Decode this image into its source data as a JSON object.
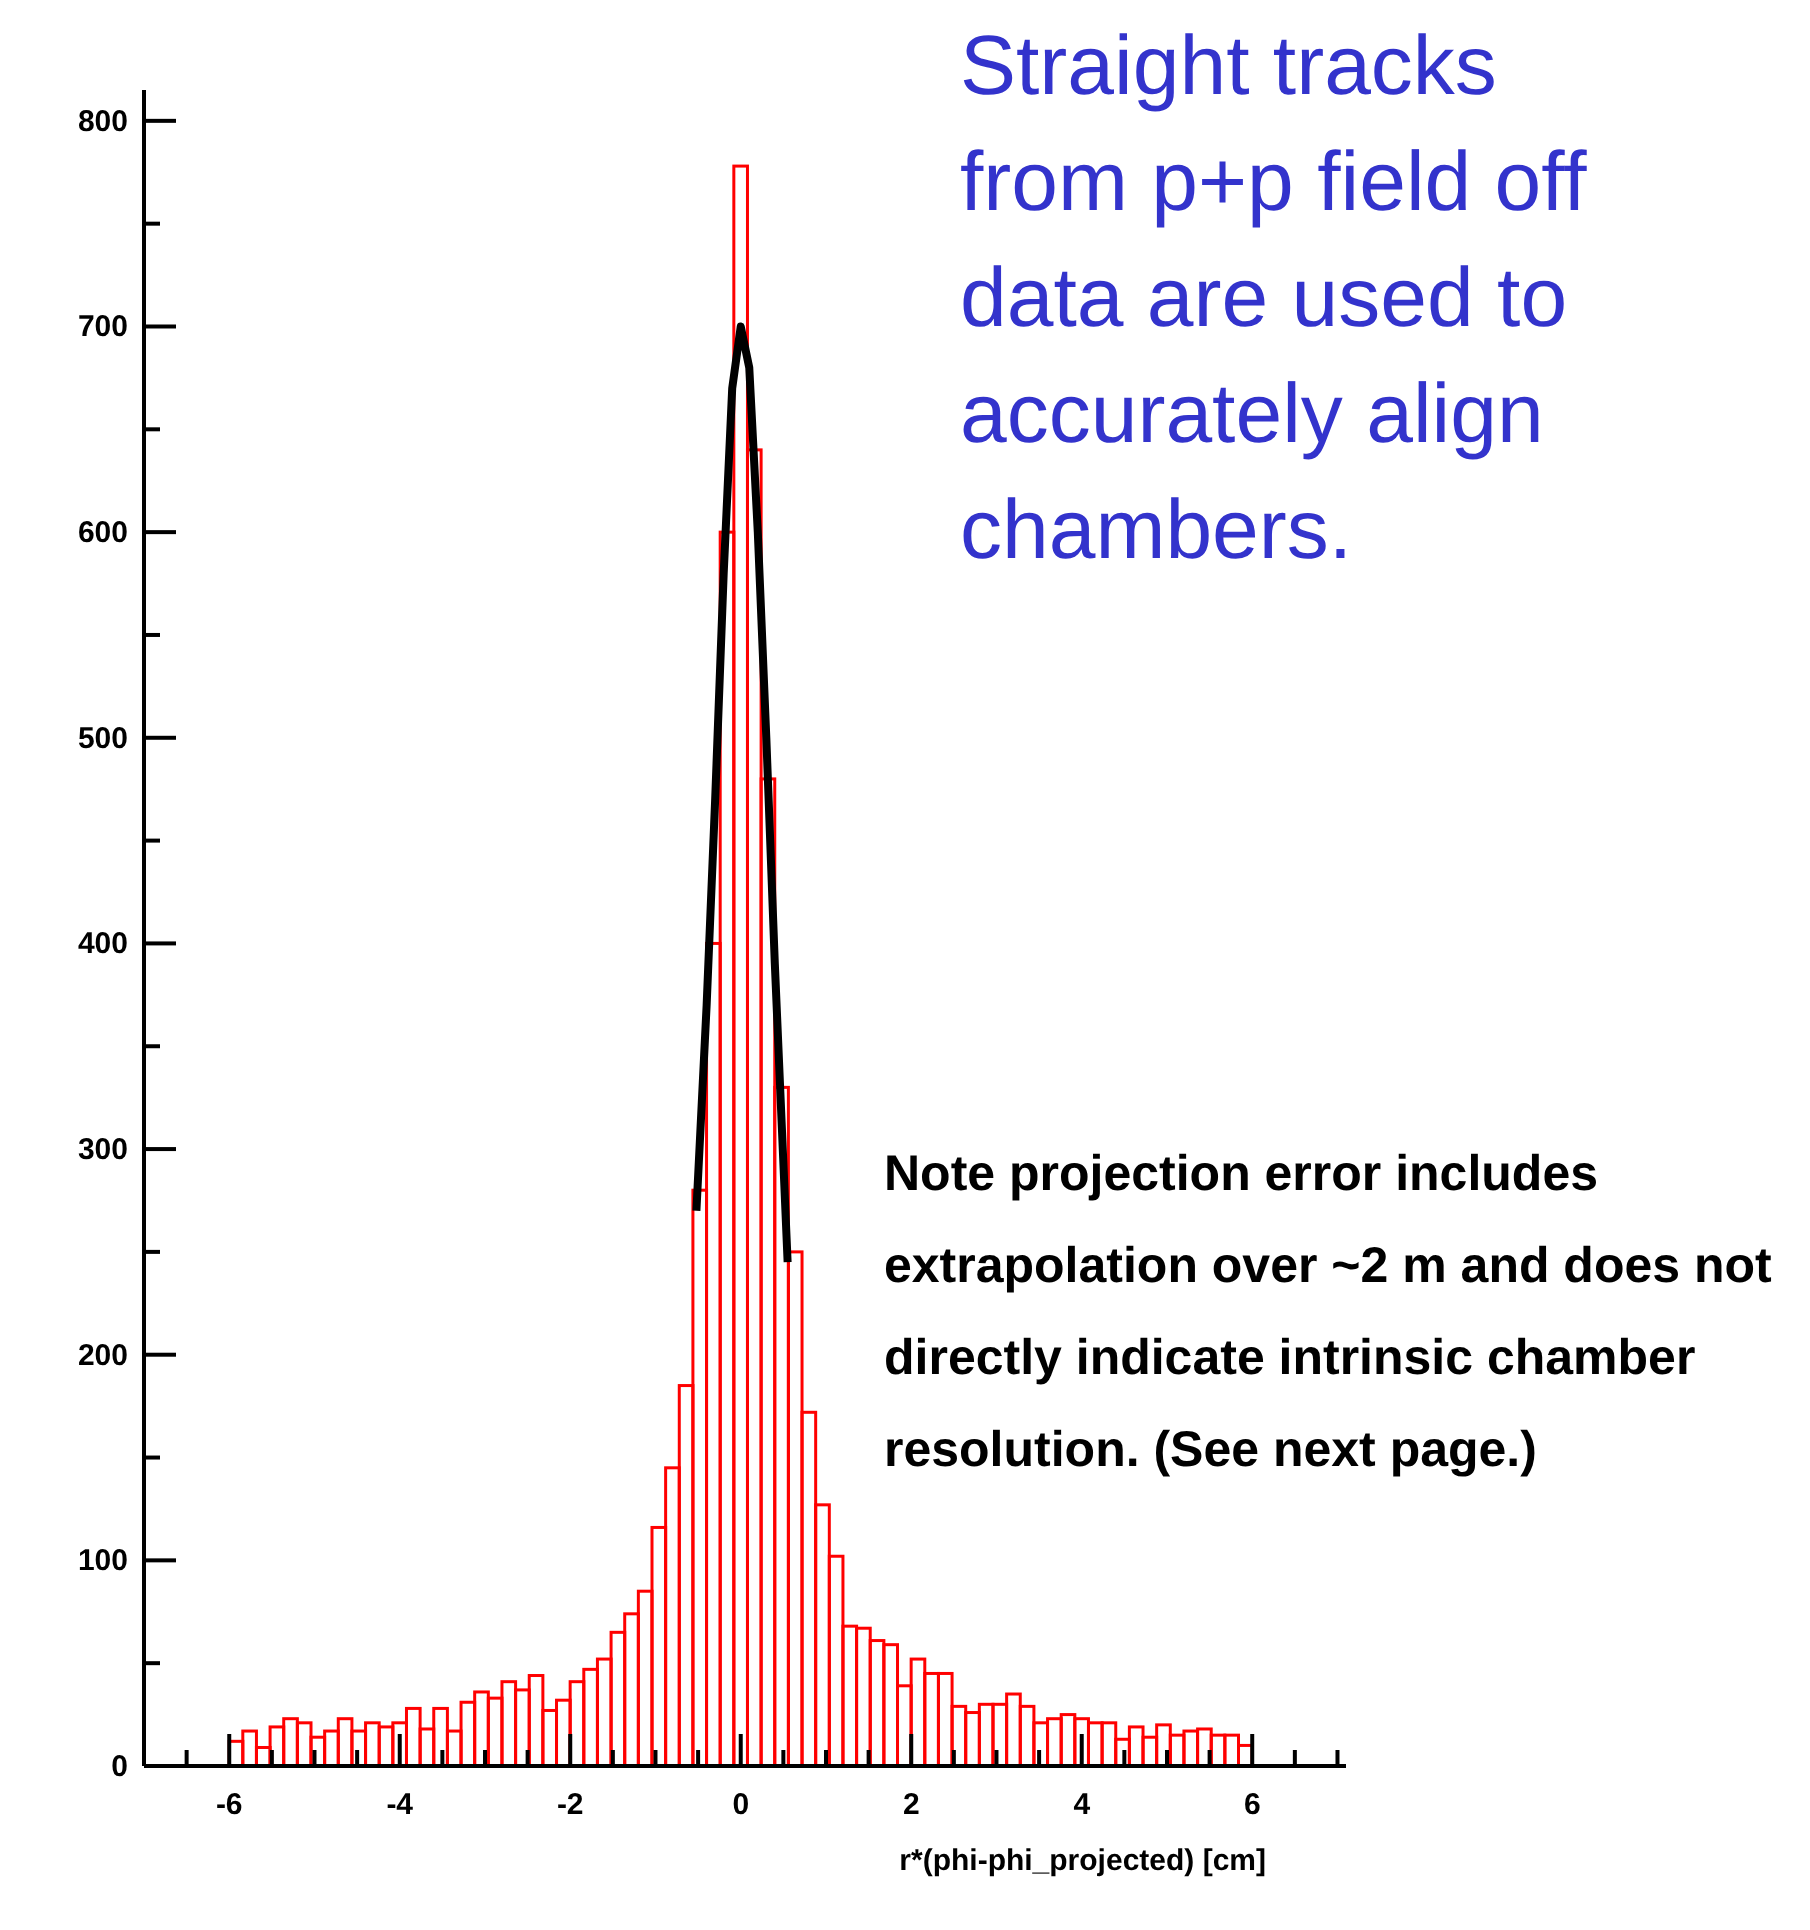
{
  "chart_data": {
    "type": "histogram",
    "xlabel": "r*(phi-phi_projected)  [cm]",
    "annotations": [
      "Straight tracks from p+p field off data are used to accurately align chambers.",
      "Note projection error includes extrapolation over ~2 m and does not directly indicate intrinsic chamber resolution. (See next page.)"
    ],
    "bins": [
      -6,
      -5.84,
      -5.68,
      -5.52,
      -5.36,
      -5.2,
      -5.04,
      -4.88,
      -4.72,
      -4.56,
      -4.4,
      -4.24,
      -4.08,
      -3.92,
      -3.76,
      -3.6,
      -3.44,
      -3.28,
      -3.12,
      -2.96,
      -2.8,
      -2.64,
      -2.48,
      -2.32,
      -2.16,
      -2,
      -1.84,
      -1.68,
      -1.52,
      -1.36,
      -1.2,
      -1.04,
      -0.88,
      -0.72,
      -0.56,
      -0.4,
      -0.24,
      -0.08,
      0.08,
      0.24,
      0.4,
      0.56,
      0.72,
      0.88,
      1.04,
      1.2,
      1.36,
      1.52,
      1.68,
      1.84,
      2,
      2.16,
      2.32,
      2.48,
      2.64,
      2.8,
      2.96,
      3.12,
      3.28,
      3.44,
      3.6,
      3.76,
      3.92,
      4.08,
      4.24,
      4.4,
      4.56,
      4.72,
      4.88,
      5.04,
      5.2,
      5.36,
      5.52,
      5.68,
      5.84,
      6
    ],
    "series": [
      {
        "color": "#ff0000",
        "values": [
          12,
          17,
          9,
          19,
          23,
          21,
          14,
          17,
          23,
          17,
          21,
          19,
          21,
          28,
          18,
          28,
          17,
          31,
          36,
          33,
          41,
          37,
          44,
          27,
          32,
          41,
          47,
          52,
          65,
          74,
          85,
          116,
          145,
          185,
          280,
          400,
          600,
          778,
          640,
          480,
          330,
          250,
          172,
          127,
          102,
          68,
          67,
          61,
          59,
          39,
          52,
          45,
          45,
          29,
          26,
          30,
          30,
          35,
          29,
          21,
          23,
          25,
          23,
          21,
          21,
          13,
          19,
          14,
          20,
          15,
          17,
          18,
          15,
          15,
          10
        ]
      },
      {
        "type": "line",
        "color": "#000000",
        "x": [
          -0.52,
          -0.4,
          -0.3,
          -0.2,
          -0.1,
          0,
          0.1,
          0.2,
          0.3,
          0.4,
          0.55
        ],
        "values": [
          270,
          370,
          470,
          580,
          670,
          700,
          680,
          600,
          500,
          390,
          245
        ]
      }
    ],
    "xlim": [
      -7,
      7.1
    ],
    "xticks": [
      {
        "value": -6.5,
        "label": null
      },
      -6,
      {
        "value": -5.5,
        "label": null
      },
      {
        "value": -5,
        "label": null
      },
      {
        "value": -4.5,
        "label": null
      },
      -4,
      {
        "value": -3.5,
        "label": null
      },
      {
        "value": -3,
        "label": null
      },
      {
        "value": -2.5,
        "label": null
      },
      -2,
      {
        "value": -1.5,
        "label": null
      },
      {
        "value": -1,
        "label": null
      },
      {
        "value": -0.5,
        "label": null
      },
      0,
      {
        "value": 0.5,
        "label": null
      },
      {
        "value": 1,
        "label": null
      },
      {
        "value": 1.5,
        "label": null
      },
      2,
      {
        "value": 2.5,
        "label": null
      },
      {
        "value": 3,
        "label": null
      },
      {
        "value": 3.5,
        "label": null
      },
      4,
      {
        "value": 4.5,
        "label": null
      },
      {
        "value": 5,
        "label": null
      },
      {
        "value": 5.5,
        "label": null
      },
      6,
      {
        "value": 6.5,
        "label": null
      },
      {
        "value": 7,
        "label": null
      }
    ],
    "ylim": [
      0,
      815
    ],
    "yticks": [
      0,
      {
        "value": 50,
        "label": null
      },
      100,
      {
        "value": 150,
        "label": null
      },
      200,
      {
        "value": 250,
        "label": null
      },
      300,
      {
        "value": 350,
        "label": null
      },
      400,
      {
        "value": 450,
        "label": null
      },
      500,
      {
        "value": 550,
        "label": null
      },
      600,
      {
        "value": 650,
        "label": null
      },
      700,
      {
        "value": 750,
        "label": null
      },
      800
    ]
  }
}
